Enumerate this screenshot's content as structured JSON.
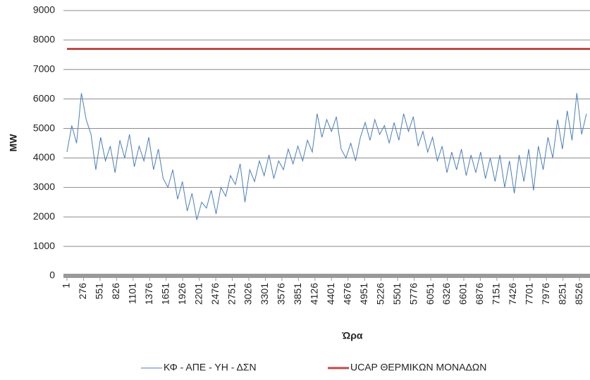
{
  "chart_data": {
    "type": "line",
    "x_label": "Ώρα",
    "y_label": "MW",
    "xlim": [
      1,
      8700
    ],
    "ylim": [
      0,
      9000
    ],
    "xticks": [
      1,
      276,
      551,
      826,
      1101,
      1376,
      1651,
      1926,
      2201,
      2476,
      2751,
      3026,
      3301,
      3576,
      3851,
      4126,
      4401,
      4676,
      4951,
      5226,
      5501,
      5776,
      6051,
      6326,
      6601,
      6876,
      7151,
      7426,
      7701,
      7976,
      8251,
      8526
    ],
    "yticks": [
      0,
      1000,
      2000,
      3000,
      4000,
      5000,
      6000,
      7000,
      8000,
      9000
    ],
    "grid": true,
    "legend": "bottom",
    "series": [
      {
        "name": "ΚΦ - ΑΠΕ - ΥΗ - ΔΣΝ",
        "color": "#4a7ebb",
        "x": [
          1,
          81,
          161,
          241,
          321,
          401,
          481,
          561,
          641,
          721,
          801,
          881,
          961,
          1041,
          1121,
          1201,
          1281,
          1361,
          1441,
          1521,
          1601,
          1681,
          1761,
          1841,
          1921,
          2001,
          2081,
          2161,
          2241,
          2321,
          2401,
          2481,
          2561,
          2641,
          2721,
          2801,
          2881,
          2961,
          3041,
          3121,
          3201,
          3281,
          3361,
          3441,
          3521,
          3601,
          3681,
          3761,
          3841,
          3921,
          4001,
          4081,
          4161,
          4241,
          4321,
          4401,
          4481,
          4561,
          4641,
          4721,
          4801,
          4881,
          4961,
          5041,
          5121,
          5201,
          5281,
          5361,
          5441,
          5521,
          5601,
          5681,
          5761,
          5841,
          5921,
          6001,
          6081,
          6161,
          6241,
          6321,
          6401,
          6481,
          6561,
          6641,
          6721,
          6801,
          6881,
          6961,
          7041,
          7121,
          7201,
          7281,
          7361,
          7441,
          7521,
          7601,
          7681,
          7761,
          7841,
          7921,
          8001,
          8081,
          8161,
          8241,
          8321,
          8401,
          8481,
          8561,
          8641
        ],
        "values": [
          4200,
          5100,
          4500,
          6200,
          5300,
          4800,
          3600,
          4700,
          3900,
          4400,
          3500,
          4600,
          4000,
          4800,
          3700,
          4400,
          3900,
          4700,
          3600,
          4300,
          3300,
          3000,
          3600,
          2600,
          3200,
          2200,
          2800,
          1900,
          2500,
          2300,
          2900,
          2100,
          3000,
          2700,
          3400,
          3100,
          3800,
          2500,
          3600,
          3200,
          3900,
          3400,
          4100,
          3300,
          3900,
          3600,
          4300,
          3800,
          4400,
          3900,
          4600,
          4200,
          5500,
          4700,
          5300,
          4900,
          5400,
          4300,
          4000,
          4500,
          3900,
          4700,
          5200,
          4600,
          5300,
          4800,
          5100,
          4500,
          5200,
          4600,
          5500,
          4900,
          5400,
          4400,
          4900,
          4200,
          4700,
          3900,
          4400,
          3500,
          4200,
          3600,
          4300,
          3400,
          4100,
          3500,
          4200,
          3300,
          4000,
          3200,
          4100,
          3000,
          3900,
          2800,
          4100,
          3200,
          4300,
          2900,
          4400,
          3600,
          4700,
          4000,
          5300,
          4300,
          5600,
          4600,
          6200,
          4800,
          5500
        ]
      },
      {
        "name": "UCAP ΘΕΡΜΙΚΩΝ ΜΟΝΑΔΩΝ",
        "color": "#be4b48",
        "x": [
          1,
          8700
        ],
        "values": [
          7700,
          7700
        ]
      }
    ]
  }
}
